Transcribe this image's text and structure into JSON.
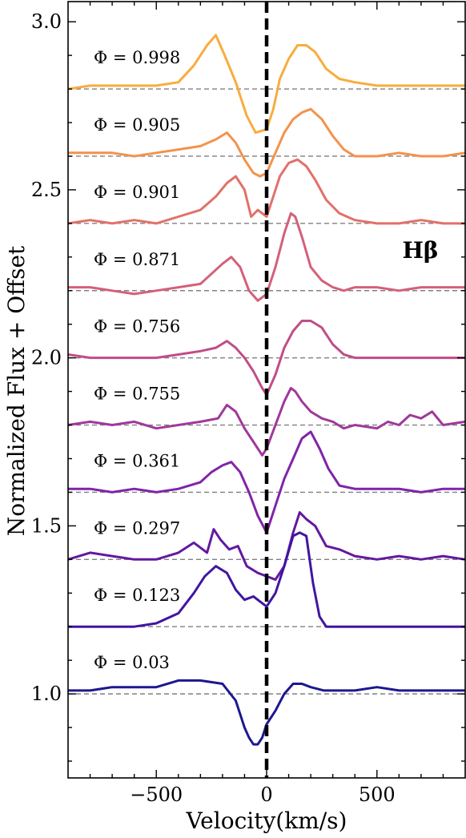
{
  "chart_data": {
    "type": "line",
    "title": "",
    "xlabel": "Velocity(km/s)",
    "ylabel": "Normalized Flux + Offset",
    "xlim": [
      -900,
      900
    ],
    "ylim": [
      0.75,
      3.06
    ],
    "x_ticks": [
      -500,
      0,
      500
    ],
    "x_tick_labels": [
      "−500",
      "0",
      "500"
    ],
    "y_ticks": [
      1.0,
      1.5,
      2.0,
      2.5,
      3.0
    ],
    "y_tick_labels": [
      "1.0",
      "1.5",
      "2.0",
      "2.5",
      "3.0"
    ],
    "line_label": "Hβ",
    "grid": false,
    "reference_line": {
      "x": 0,
      "style": "dashed",
      "color": "#000000"
    },
    "baseline_style": {
      "style": "dashed",
      "color": "#808080"
    },
    "series": [
      {
        "phase_label": "Φ = 0.998",
        "offset": 2.8,
        "color": "#f7ad3e",
        "x": [
          -900,
          -800,
          -700,
          -600,
          -500,
          -400,
          -330,
          -270,
          -230,
          -190,
          -140,
          -90,
          -50,
          0,
          30,
          60,
          100,
          140,
          180,
          220,
          270,
          330,
          400,
          500,
          600,
          700,
          800,
          900
        ],
        "y": [
          2.8,
          2.81,
          2.81,
          2.81,
          2.81,
          2.82,
          2.87,
          2.93,
          2.96,
          2.9,
          2.82,
          2.72,
          2.67,
          2.68,
          2.74,
          2.83,
          2.89,
          2.93,
          2.93,
          2.91,
          2.86,
          2.83,
          2.82,
          2.81,
          2.81,
          2.81,
          2.81,
          2.81
        ]
      },
      {
        "phase_label": "Φ = 0.905",
        "offset": 2.6,
        "color": "#f4924a",
        "x": [
          -900,
          -800,
          -700,
          -600,
          -500,
          -400,
          -300,
          -230,
          -180,
          -140,
          -100,
          -60,
          -30,
          0,
          40,
          80,
          120,
          160,
          200,
          250,
          300,
          350,
          400,
          500,
          600,
          700,
          800,
          900
        ],
        "y": [
          2.61,
          2.61,
          2.61,
          2.6,
          2.61,
          2.62,
          2.63,
          2.65,
          2.67,
          2.64,
          2.59,
          2.55,
          2.54,
          2.55,
          2.61,
          2.67,
          2.71,
          2.73,
          2.74,
          2.71,
          2.66,
          2.62,
          2.6,
          2.6,
          2.61,
          2.6,
          2.6,
          2.61
        ]
      },
      {
        "phase_label": "Φ = 0.901",
        "offset": 2.4,
        "color": "#e2706a",
        "x": [
          -900,
          -800,
          -700,
          -600,
          -500,
          -400,
          -300,
          -230,
          -180,
          -140,
          -100,
          -70,
          -40,
          -20,
          0,
          30,
          60,
          100,
          140,
          180,
          220,
          270,
          330,
          400,
          500,
          600,
          700,
          800,
          900
        ],
        "y": [
          2.4,
          2.41,
          2.4,
          2.41,
          2.4,
          2.42,
          2.44,
          2.48,
          2.52,
          2.54,
          2.5,
          2.42,
          2.44,
          2.43,
          2.42,
          2.48,
          2.54,
          2.58,
          2.59,
          2.57,
          2.53,
          2.47,
          2.43,
          2.41,
          2.4,
          2.4,
          2.41,
          2.4,
          2.4
        ]
      },
      {
        "phase_label": "Φ = 0.871",
        "offset": 2.2,
        "color": "#d4607a",
        "x": [
          -900,
          -800,
          -700,
          -600,
          -500,
          -400,
          -300,
          -250,
          -200,
          -160,
          -120,
          -80,
          -40,
          0,
          40,
          80,
          110,
          130,
          160,
          200,
          250,
          300,
          350,
          400,
          500,
          600,
          700,
          800,
          900
        ],
        "y": [
          2.21,
          2.21,
          2.2,
          2.19,
          2.2,
          2.21,
          2.22,
          2.25,
          2.28,
          2.3,
          2.27,
          2.2,
          2.17,
          2.19,
          2.27,
          2.37,
          2.43,
          2.42,
          2.36,
          2.27,
          2.23,
          2.21,
          2.2,
          2.21,
          2.21,
          2.2,
          2.21,
          2.21,
          2.21
        ]
      },
      {
        "phase_label": "Φ = 0.756",
        "offset": 2.0,
        "color": "#c04d88",
        "x": [
          -900,
          -800,
          -700,
          -600,
          -500,
          -400,
          -300,
          -230,
          -180,
          -140,
          -100,
          -60,
          -20,
          0,
          40,
          80,
          120,
          160,
          200,
          250,
          300,
          350,
          400,
          500,
          600,
          700,
          800,
          900
        ],
        "y": [
          2.01,
          2.0,
          2.0,
          2.0,
          2.0,
          2.01,
          2.02,
          2.03,
          2.05,
          2.03,
          2.0,
          1.96,
          1.91,
          1.89,
          1.95,
          2.03,
          2.08,
          2.11,
          2.11,
          2.09,
          2.04,
          2.01,
          2.0,
          2.0,
          2.0,
          2.0,
          2.0,
          2.0
        ]
      },
      {
        "phase_label": "Φ = 0.755",
        "offset": 1.8,
        "color": "#a0389a",
        "x": [
          -900,
          -800,
          -700,
          -600,
          -500,
          -400,
          -300,
          -220,
          -180,
          -140,
          -100,
          -60,
          -20,
          0,
          40,
          80,
          110,
          130,
          160,
          200,
          250,
          300,
          350,
          400,
          500,
          550,
          600,
          650,
          700,
          750,
          800,
          900
        ],
        "y": [
          1.8,
          1.81,
          1.8,
          1.81,
          1.79,
          1.8,
          1.81,
          1.82,
          1.86,
          1.84,
          1.79,
          1.75,
          1.71,
          1.73,
          1.8,
          1.87,
          1.91,
          1.9,
          1.87,
          1.84,
          1.82,
          1.81,
          1.79,
          1.8,
          1.79,
          1.81,
          1.8,
          1.83,
          1.82,
          1.84,
          1.8,
          1.81
        ]
      },
      {
        "phase_label": "Φ = 0.361",
        "offset": 1.6,
        "color": "#8024a8",
        "x": [
          -900,
          -800,
          -700,
          -600,
          -500,
          -400,
          -300,
          -250,
          -200,
          -160,
          -120,
          -80,
          -40,
          0,
          40,
          80,
          120,
          160,
          200,
          240,
          280,
          330,
          400,
          500,
          600,
          700,
          800,
          900
        ],
        "y": [
          1.61,
          1.61,
          1.6,
          1.61,
          1.6,
          1.61,
          1.63,
          1.66,
          1.68,
          1.69,
          1.66,
          1.6,
          1.53,
          1.48,
          1.56,
          1.64,
          1.7,
          1.76,
          1.78,
          1.73,
          1.67,
          1.62,
          1.61,
          1.61,
          1.61,
          1.6,
          1.61,
          1.61
        ]
      },
      {
        "phase_label": "Φ = 0.297",
        "offset": 1.4,
        "color": "#6418a0",
        "x": [
          -900,
          -800,
          -700,
          -600,
          -500,
          -400,
          -330,
          -270,
          -240,
          -210,
          -170,
          -130,
          -90,
          -40,
          0,
          40,
          80,
          120,
          150,
          180,
          220,
          270,
          330,
          400,
          500,
          600,
          700,
          800,
          900
        ],
        "y": [
          1.4,
          1.42,
          1.41,
          1.4,
          1.4,
          1.42,
          1.45,
          1.42,
          1.49,
          1.46,
          1.43,
          1.44,
          1.38,
          1.36,
          1.35,
          1.34,
          1.38,
          1.48,
          1.54,
          1.52,
          1.5,
          1.44,
          1.43,
          1.41,
          1.4,
          1.41,
          1.4,
          1.41,
          1.4
        ]
      },
      {
        "phase_label": "Φ = 0.123",
        "offset": 1.2,
        "color": "#4016a0",
        "x": [
          -900,
          -800,
          -700,
          -600,
          -500,
          -400,
          -330,
          -280,
          -230,
          -180,
          -140,
          -100,
          -60,
          -20,
          0,
          40,
          80,
          120,
          150,
          180,
          210,
          240,
          270,
          300,
          400,
          500,
          600,
          700,
          800,
          900
        ],
        "y": [
          1.2,
          1.2,
          1.2,
          1.2,
          1.21,
          1.24,
          1.3,
          1.35,
          1.38,
          1.36,
          1.31,
          1.28,
          1.29,
          1.27,
          1.26,
          1.3,
          1.38,
          1.47,
          1.48,
          1.47,
          1.33,
          1.23,
          1.2,
          1.2,
          1.2,
          1.2,
          1.2,
          1.2,
          1.2,
          1.2
        ]
      },
      {
        "phase_label": "Φ = 0.03",
        "offset": 1.0,
        "color": "#1c1890",
        "x": [
          -900,
          -800,
          -700,
          -600,
          -500,
          -400,
          -300,
          -200,
          -140,
          -100,
          -80,
          -60,
          -40,
          -20,
          0,
          40,
          80,
          120,
          160,
          200,
          260,
          300,
          400,
          500,
          600,
          700,
          800,
          900
        ],
        "y": [
          1.01,
          1.01,
          1.02,
          1.02,
          1.02,
          1.04,
          1.04,
          1.03,
          0.98,
          0.9,
          0.87,
          0.85,
          0.85,
          0.87,
          0.91,
          0.95,
          1.0,
          1.03,
          1.03,
          1.02,
          1.01,
          1.01,
          1.01,
          1.02,
          1.01,
          1.01,
          1.01,
          1.01
        ]
      }
    ]
  }
}
